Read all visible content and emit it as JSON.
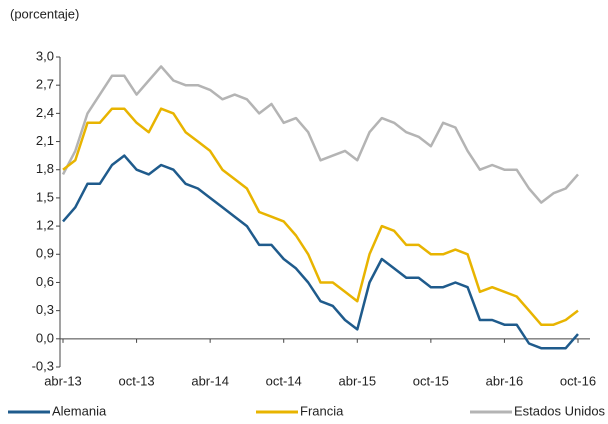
{
  "chart_data": {
    "type": "line",
    "y_label": "(porcentaje)",
    "categories": [
      "abr-13",
      null,
      null,
      null,
      null,
      null,
      "oct-13",
      null,
      null,
      null,
      null,
      null,
      "abr-14",
      null,
      null,
      null,
      null,
      null,
      "oct-14",
      null,
      null,
      null,
      null,
      null,
      "abr-15",
      null,
      null,
      null,
      null,
      null,
      "oct-15",
      null,
      null,
      null,
      null,
      null,
      "abr-16",
      null,
      null,
      null,
      null,
      null,
      "oct-16"
    ],
    "series": [
      {
        "name": "Alemania",
        "color": "#1f5b8c",
        "values": [
          1.25,
          1.4,
          1.65,
          1.65,
          1.85,
          1.95,
          1.8,
          1.75,
          1.85,
          1.8,
          1.65,
          1.6,
          1.5,
          1.4,
          1.3,
          1.2,
          1.0,
          1.0,
          0.85,
          0.75,
          0.6,
          0.4,
          0.35,
          0.2,
          0.1,
          0.6,
          0.85,
          0.75,
          0.65,
          0.65,
          0.55,
          0.55,
          0.6,
          0.55,
          0.2,
          0.2,
          0.15,
          0.15,
          -0.05,
          -0.1,
          -0.1,
          -0.1,
          0.05
        ]
      },
      {
        "name": "Francia",
        "color": "#e8b400",
        "values": [
          1.8,
          1.9,
          2.3,
          2.3,
          2.45,
          2.45,
          2.3,
          2.2,
          2.45,
          2.4,
          2.2,
          2.1,
          2.0,
          1.8,
          1.7,
          1.6,
          1.35,
          1.3,
          1.25,
          1.1,
          0.9,
          0.6,
          0.6,
          0.5,
          0.4,
          0.9,
          1.2,
          1.15,
          1.0,
          1.0,
          0.9,
          0.9,
          0.95,
          0.9,
          0.5,
          0.55,
          0.5,
          0.45,
          0.3,
          0.15,
          0.15,
          0.2,
          0.3
        ]
      },
      {
        "name": "Estados Unidos",
        "color": "#b4b4b4",
        "values": [
          1.75,
          2.0,
          2.4,
          2.6,
          2.8,
          2.8,
          2.6,
          2.75,
          2.9,
          2.75,
          2.7,
          2.7,
          2.65,
          2.55,
          2.6,
          2.55,
          2.4,
          2.5,
          2.3,
          2.35,
          2.2,
          1.9,
          1.95,
          2.0,
          1.9,
          2.2,
          2.35,
          2.3,
          2.2,
          2.15,
          2.05,
          2.3,
          2.25,
          2.0,
          1.8,
          1.85,
          1.8,
          1.8,
          1.6,
          1.45,
          1.55,
          1.6,
          1.75
        ]
      }
    ],
    "ylim": [
      -0.3,
      3.0
    ],
    "yticks": [
      {
        "value": -0.3,
        "label": "-0,3"
      },
      {
        "value": 0,
        "label": "0,0"
      },
      {
        "value": 0.3,
        "label": "0,3"
      },
      {
        "value": 0.6,
        "label": "0,6"
      },
      {
        "value": 0.9,
        "label": "0,9"
      },
      {
        "value": 1.2,
        "label": "1,2"
      },
      {
        "value": 1.5,
        "label": "1,5"
      },
      {
        "value": 1.8,
        "label": "1,8"
      },
      {
        "value": 2.1,
        "label": "2,1"
      },
      {
        "value": 2.4,
        "label": "2,4"
      },
      {
        "value": 2.7,
        "label": "2,7"
      },
      {
        "value": 3.0,
        "label": "3,0"
      }
    ],
    "grid": false,
    "legend": "bottom"
  }
}
